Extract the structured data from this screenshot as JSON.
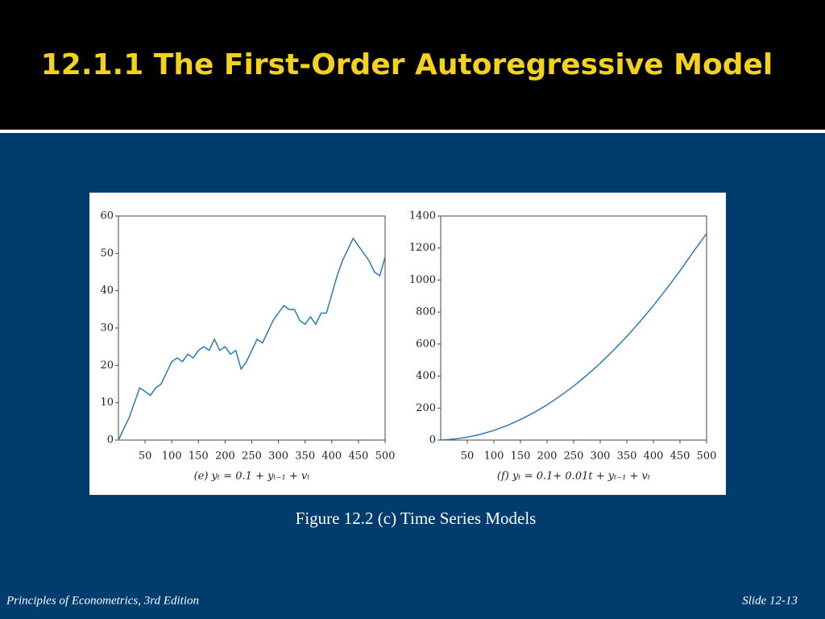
{
  "slide": {
    "title": "12.1.1 The First-Order Autoregressive Model",
    "caption": "Figure 12.2 (c) Time Series Models",
    "footer_left": "Principles of Econometrics, 3rd Edition",
    "footer_right": "Slide 12-13"
  },
  "chart_data": [
    {
      "type": "line",
      "xlabel": "(e) yₜ = 0.1 + yₜ₋₁ + vₜ",
      "color": "#2a7ab8",
      "x": [
        0,
        10,
        20,
        30,
        40,
        50,
        60,
        70,
        80,
        90,
        100,
        110,
        120,
        130,
        140,
        150,
        160,
        170,
        180,
        190,
        200,
        210,
        220,
        230,
        240,
        250,
        260,
        270,
        280,
        290,
        300,
        310,
        320,
        330,
        340,
        350,
        360,
        370,
        380,
        390,
        400,
        410,
        420,
        430,
        440,
        450,
        460,
        470,
        480,
        490,
        500
      ],
      "values": [
        0,
        3,
        6,
        10,
        14,
        13,
        12,
        14,
        15,
        18,
        21,
        22,
        21,
        23,
        22,
        24,
        25,
        24,
        27,
        24,
        25,
        23,
        24,
        19,
        21,
        24,
        27,
        26,
        29,
        32,
        34,
        36,
        35,
        35,
        32,
        31,
        33,
        31,
        34,
        34,
        39,
        44,
        48,
        51,
        54,
        52,
        50,
        48,
        45,
        44,
        49
      ],
      "xlim": [
        0,
        500
      ],
      "ylim": [
        0,
        60
      ],
      "xticks": [
        50,
        100,
        150,
        200,
        250,
        300,
        350,
        400,
        450,
        500
      ],
      "yticks": [
        0,
        10,
        20,
        30,
        40,
        50,
        60
      ]
    },
    {
      "type": "line",
      "xlabel": "(f) yₜ = 0.1+ 0.01t + yₜ₋₁ + vₜ",
      "color": "#2a7ab8",
      "x": [
        0,
        25,
        50,
        75,
        100,
        125,
        150,
        175,
        200,
        225,
        250,
        275,
        300,
        325,
        350,
        375,
        400,
        425,
        450,
        475,
        500
      ],
      "values": [
        0,
        6,
        18,
        36,
        60,
        91,
        128,
        171,
        220,
        276,
        337,
        406,
        480,
        561,
        647,
        741,
        840,
        946,
        1057,
        1176,
        1290
      ],
      "xlim": [
        0,
        500
      ],
      "ylim": [
        0,
        1400
      ],
      "xticks": [
        50,
        100,
        150,
        200,
        250,
        300,
        350,
        400,
        450,
        500
      ],
      "yticks": [
        0,
        200,
        400,
        600,
        800,
        1000,
        1200,
        1400
      ]
    }
  ]
}
